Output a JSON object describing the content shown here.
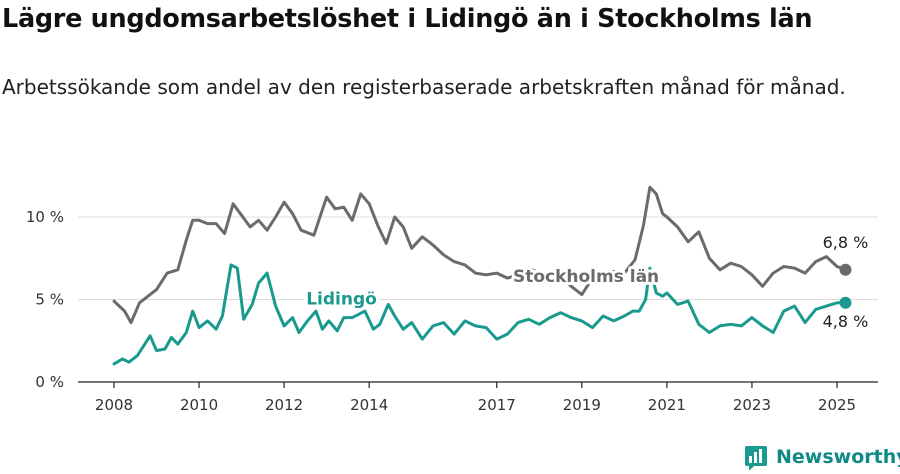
{
  "title": "Lägre ungdomsarbetslöshet i Lidingö än i Stockholms län",
  "subtitle": "Arbetssökande som andel av den registerbaserade arbetskraften månad för månad.",
  "brand": {
    "name": "Newsworthy",
    "icon": "newsworthy-logo-icon",
    "color": "#1a9a8f"
  },
  "chart_data": {
    "type": "line",
    "xlim": [
      2007.5,
      2026
    ],
    "ylim": [
      0,
      12.5
    ],
    "grid": true,
    "x_ticks": [
      {
        "value": 2008,
        "label": "2008"
      },
      {
        "value": 2010,
        "label": "2010"
      },
      {
        "value": 2012,
        "label": "2012"
      },
      {
        "value": 2014,
        "label": "2014"
      },
      {
        "value": 2017,
        "label": "2017"
      },
      {
        "value": 2019,
        "label": "2019"
      },
      {
        "value": 2021,
        "label": "2021"
      },
      {
        "value": 2023,
        "label": "2023"
      },
      {
        "value": 2025,
        "label": "2025"
      }
    ],
    "y_ticks": [
      {
        "value": 0,
        "label": "0 %"
      },
      {
        "value": 5,
        "label": "5 %"
      },
      {
        "value": 10,
        "label": "10 %"
      }
    ],
    "series": [
      {
        "name": "Stockholms län",
        "color": "#6b6b6e",
        "end_label": "6,8 %",
        "x": [
          2008.0,
          2008.25,
          2008.4,
          2008.6,
          2008.8,
          2009.0,
          2009.25,
          2009.5,
          2009.7,
          2009.85,
          2010.0,
          2010.2,
          2010.4,
          2010.6,
          2010.8,
          2011.0,
          2011.2,
          2011.4,
          2011.6,
          2011.8,
          2012.0,
          2012.2,
          2012.4,
          2012.7,
          2013.0,
          2013.2,
          2013.4,
          2013.6,
          2013.8,
          2014.0,
          2014.2,
          2014.4,
          2014.6,
          2014.8,
          2015.0,
          2015.25,
          2015.5,
          2015.75,
          2016.0,
          2016.25,
          2016.5,
          2016.75,
          2017.0,
          2017.25,
          2017.5,
          2017.75,
          2018.0,
          2018.25,
          2018.5,
          2018.75,
          2019.0,
          2019.25,
          2019.5,
          2019.75,
          2020.0,
          2020.25,
          2020.45,
          2020.6,
          2020.75,
          2020.9,
          2021.0,
          2021.25,
          2021.5,
          2021.75,
          2022.0,
          2022.25,
          2022.5,
          2022.75,
          2023.0,
          2023.25,
          2023.5,
          2023.75,
          2024.0,
          2024.25,
          2024.5,
          2024.75,
          2025.0,
          2025.2
        ],
        "y": [
          4.9,
          4.3,
          3.6,
          4.8,
          5.2,
          5.6,
          6.6,
          6.8,
          8.6,
          9.8,
          9.8,
          9.6,
          9.6,
          9.0,
          10.8,
          10.1,
          9.4,
          9.8,
          9.2,
          10.0,
          10.9,
          10.2,
          9.2,
          8.9,
          11.2,
          10.5,
          10.6,
          9.8,
          11.4,
          10.8,
          9.5,
          8.4,
          10.0,
          9.4,
          8.1,
          8.8,
          8.3,
          7.7,
          7.3,
          7.1,
          6.6,
          6.5,
          6.6,
          6.3,
          6.5,
          6.9,
          6.6,
          6.6,
          6.4,
          5.8,
          5.3,
          6.3,
          6.6,
          6.7,
          6.6,
          7.4,
          9.5,
          11.8,
          11.4,
          10.2,
          10.0,
          9.4,
          8.5,
          9.1,
          7.5,
          6.8,
          7.2,
          7.0,
          6.5,
          5.8,
          6.6,
          7.0,
          6.9,
          6.6,
          7.3,
          7.6,
          7.0,
          6.8
        ]
      },
      {
        "name": "Lidingö",
        "color": "#1a9a8f",
        "end_label": "4,8 %",
        "x": [
          2008.0,
          2008.2,
          2008.35,
          2008.55,
          2008.7,
          2008.85,
          2009.0,
          2009.2,
          2009.35,
          2009.5,
          2009.7,
          2009.85,
          2010.0,
          2010.2,
          2010.4,
          2010.55,
          2010.75,
          2010.9,
          2011.05,
          2011.25,
          2011.4,
          2011.6,
          2011.8,
          2012.0,
          2012.2,
          2012.35,
          2012.55,
          2012.75,
          2012.9,
          2013.05,
          2013.25,
          2013.4,
          2013.6,
          2013.75,
          2013.9,
          2014.1,
          2014.25,
          2014.45,
          2014.6,
          2014.8,
          2015.0,
          2015.25,
          2015.5,
          2015.75,
          2016.0,
          2016.25,
          2016.5,
          2016.75,
          2017.0,
          2017.25,
          2017.5,
          2017.75,
          2018.0,
          2018.25,
          2018.5,
          2018.75,
          2019.0,
          2019.25,
          2019.5,
          2019.75,
          2020.0,
          2020.2,
          2020.35,
          2020.5,
          2020.6,
          2020.75,
          2020.9,
          2021.0,
          2021.25,
          2021.5,
          2021.75,
          2022.0,
          2022.25,
          2022.5,
          2022.75,
          2023.0,
          2023.25,
          2023.5,
          2023.75,
          2024.0,
          2024.25,
          2024.5,
          2024.75,
          2025.0,
          2025.2
        ],
        "y": [
          1.1,
          1.4,
          1.2,
          1.6,
          2.2,
          2.8,
          1.9,
          2.0,
          2.7,
          2.3,
          3.0,
          4.3,
          3.3,
          3.7,
          3.2,
          4.0,
          7.1,
          6.9,
          3.8,
          4.7,
          6.0,
          6.6,
          4.6,
          3.4,
          3.9,
          3.0,
          3.7,
          4.3,
          3.2,
          3.7,
          3.1,
          3.9,
          3.9,
          4.1,
          4.3,
          3.2,
          3.5,
          4.7,
          4.0,
          3.2,
          3.6,
          2.6,
          3.4,
          3.6,
          2.9,
          3.7,
          3.4,
          3.3,
          2.6,
          2.9,
          3.6,
          3.8,
          3.5,
          3.9,
          4.2,
          3.9,
          3.7,
          3.3,
          4.0,
          3.7,
          4.0,
          4.3,
          4.3,
          5.0,
          6.9,
          5.4,
          5.2,
          5.4,
          4.7,
          4.9,
          3.5,
          3.0,
          3.4,
          3.5,
          3.4,
          3.9,
          3.4,
          3.0,
          4.3,
          4.6,
          3.6,
          4.4,
          4.6,
          4.8,
          4.8
        ]
      }
    ],
    "annotations": [
      {
        "text": "Stockholms län",
        "series": "Stockholms län",
        "x": 2019.1,
        "y": 6.05
      },
      {
        "text": "Lidingö",
        "series": "Lidingö",
        "x": 2013.35,
        "y": 4.7
      }
    ]
  }
}
